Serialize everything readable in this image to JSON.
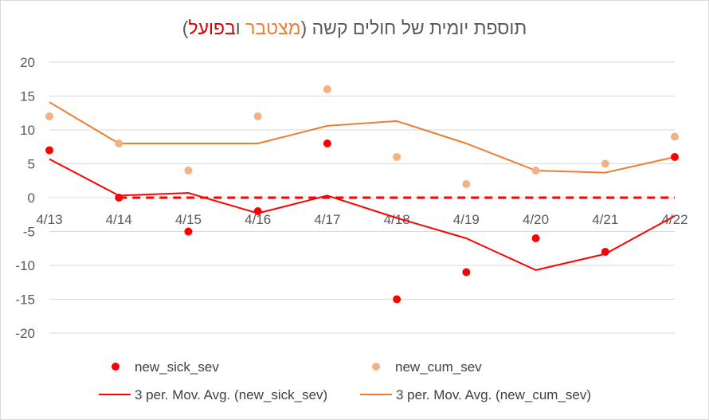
{
  "title": {
    "part1": "תוספת יומית של חולים קשה (",
    "part2": "מצטבר",
    "part3": " ו",
    "part4": "בפועל",
    "part5": ")"
  },
  "colors": {
    "sick_dot": "#ff0000",
    "cum_dot": "#f4b183",
    "sick_line": "#ff0000",
    "cum_line": "#ed7d31",
    "zero_dashed": "#ff0000",
    "grid": "#d9d9d9",
    "text": "#595959"
  },
  "chart_data": {
    "type": "scatter",
    "categories": [
      "4/13",
      "4/14",
      "4/15",
      "4/16",
      "4/17",
      "4/18",
      "4/19",
      "4/20",
      "4/21",
      "4/22"
    ],
    "yticks": [
      "20",
      "15",
      "10",
      "5",
      "0",
      "-5",
      "-10",
      "-15",
      "-20"
    ],
    "ylim": [
      -20,
      20
    ],
    "grid": true,
    "legend_position": "bottom",
    "series": [
      {
        "name": "new_sick_sev",
        "kind": "dot",
        "values": [
          7,
          0,
          -5,
          -2,
          8,
          -15,
          -11,
          -6,
          -8,
          6
        ]
      },
      {
        "name": "new_cum_sev",
        "kind": "dot",
        "values": [
          12,
          8,
          4,
          12,
          16,
          6,
          2,
          4,
          5,
          9
        ]
      },
      {
        "name": "3 per. Mov. Avg. (new_sick_sev)",
        "kind": "line",
        "values": [
          5.7,
          0.3,
          0.7,
          -2.3,
          0.3,
          -3,
          -6,
          -10.7,
          -8.3,
          -2.7
        ]
      },
      {
        "name": "3 per. Mov. Avg. (new_cum_sev)",
        "kind": "line",
        "values": [
          14.1,
          8,
          8,
          8,
          10.6,
          11.3,
          8,
          4,
          3.7,
          6
        ]
      }
    ],
    "zero_dashed_range": [
      "4/14",
      "4/22"
    ]
  }
}
